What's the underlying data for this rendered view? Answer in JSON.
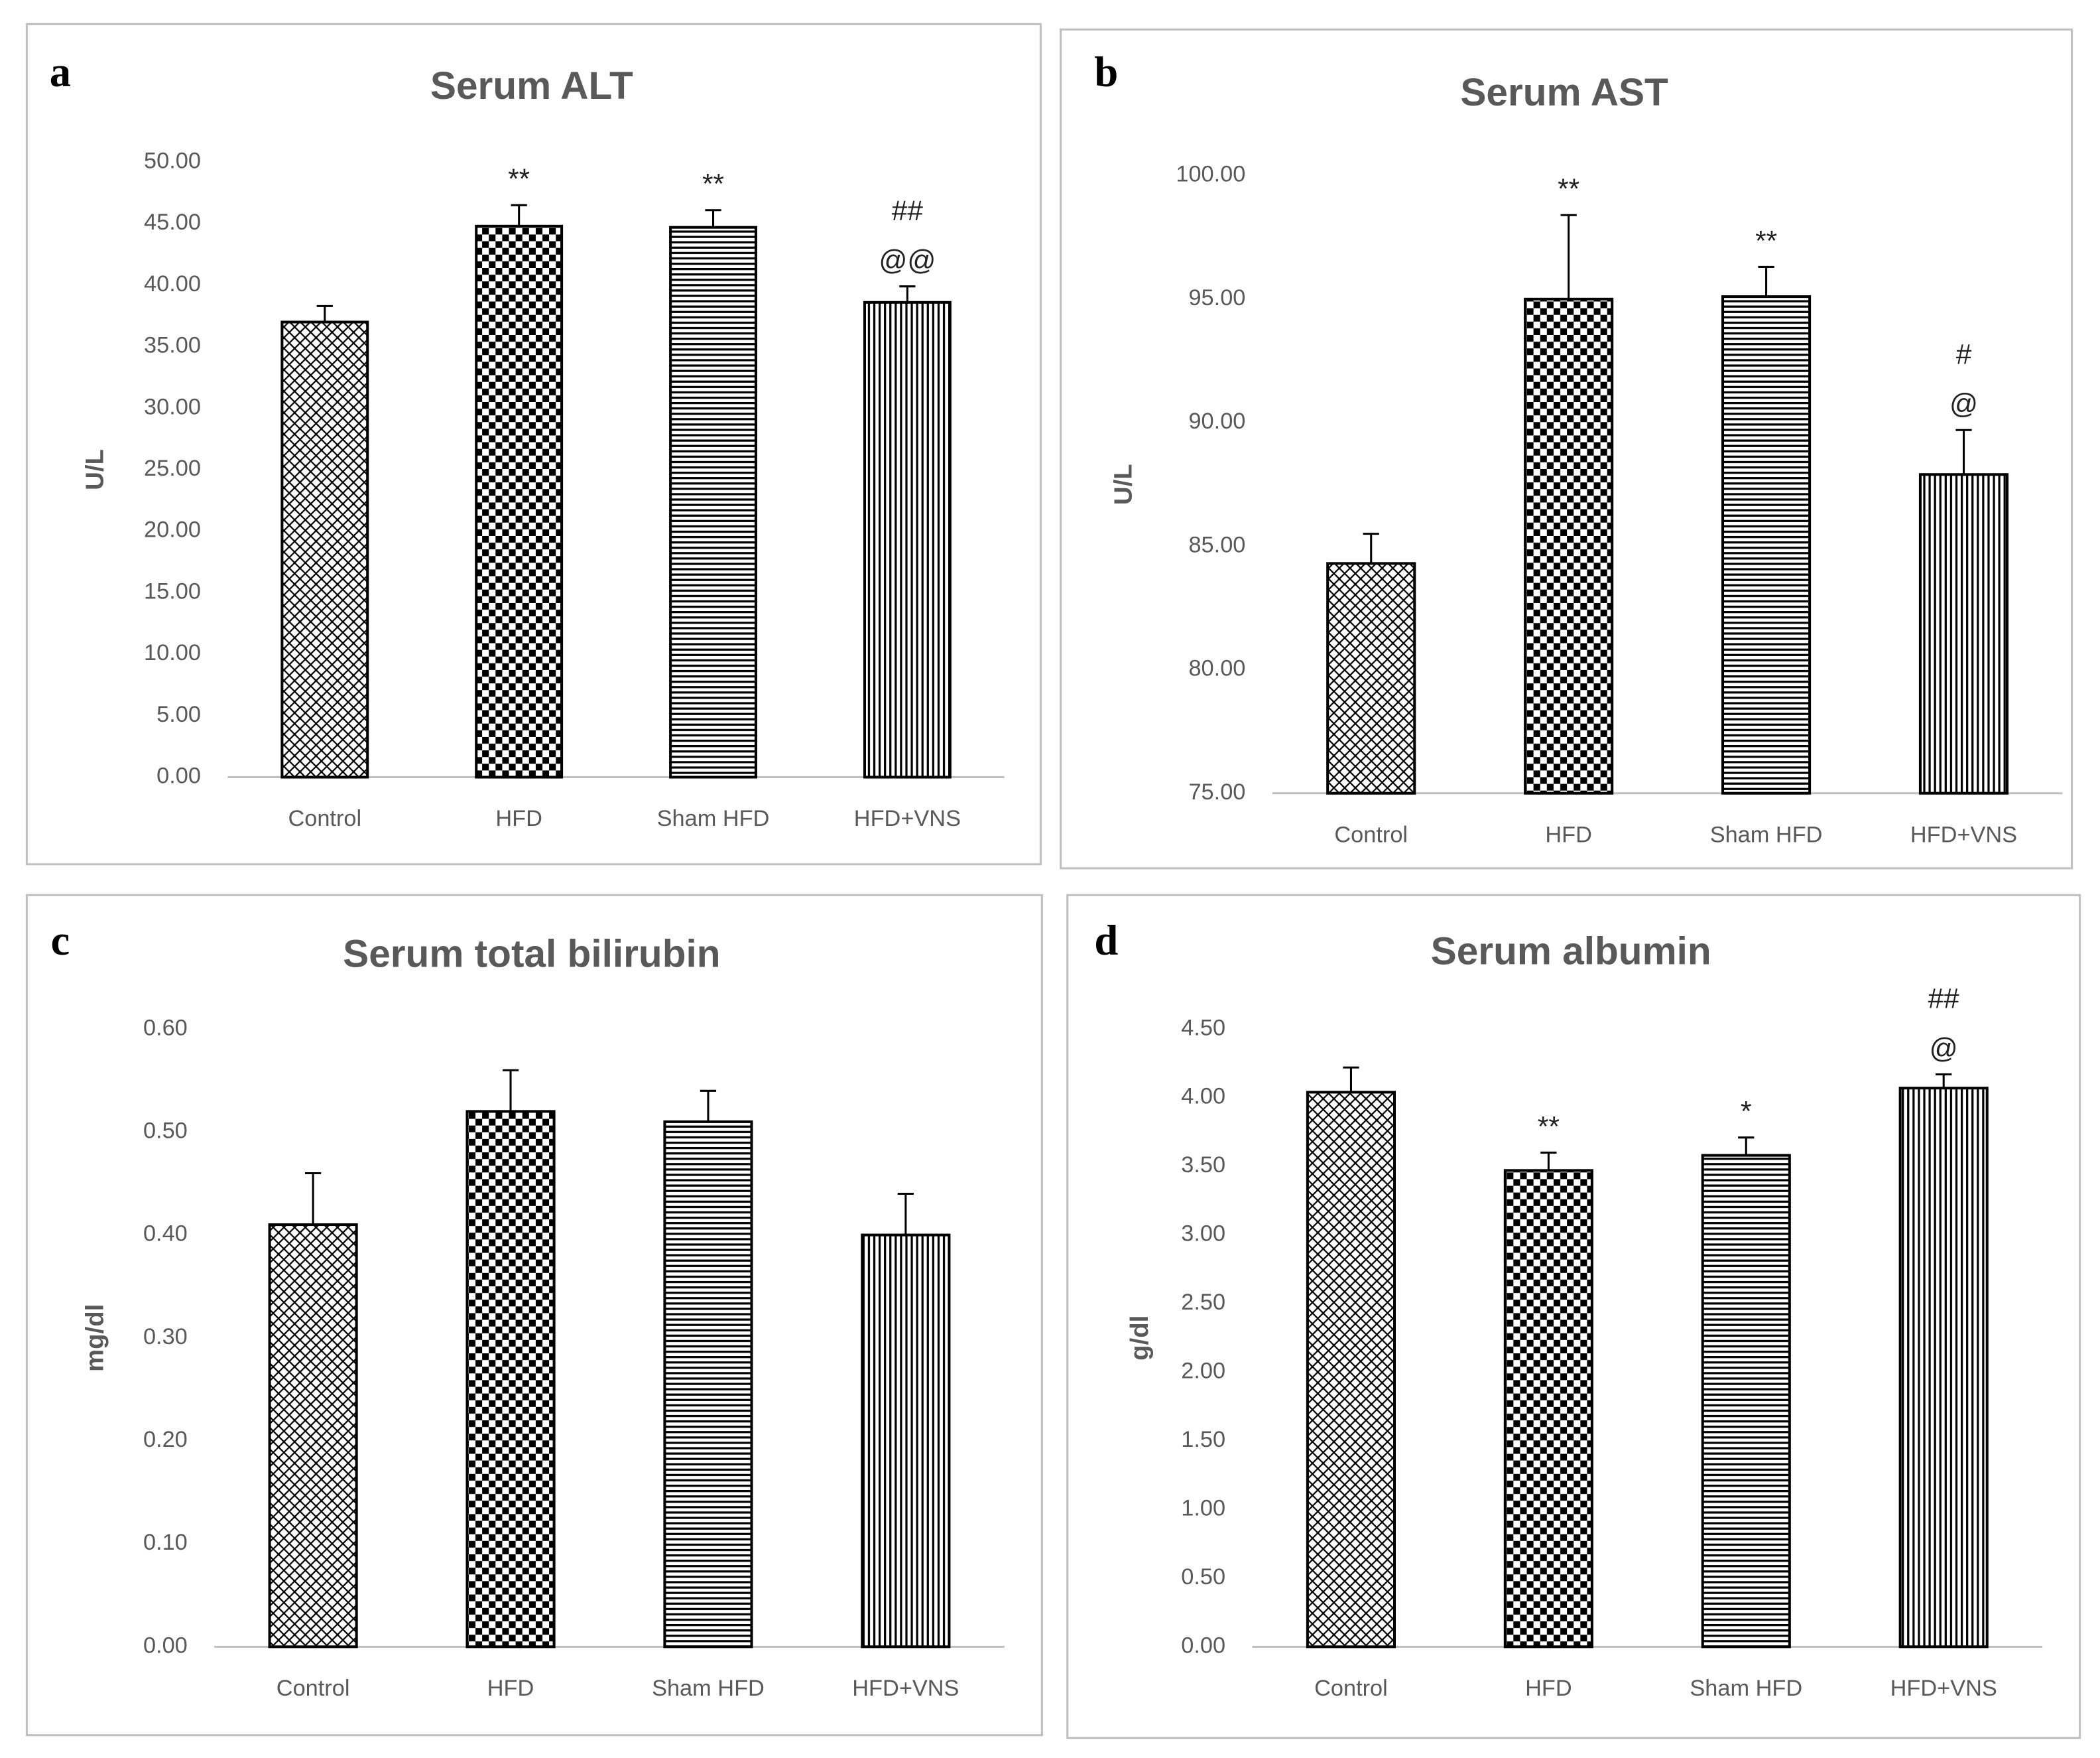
{
  "chart_data": [
    {
      "type": "bar",
      "panel": "a",
      "title": "Serum ALT",
      "ylabel": "U/L",
      "categories": [
        "Control",
        "HFD",
        "Sham HFD",
        "HFD+VNS"
      ],
      "values": [
        37.0,
        44.8,
        44.7,
        38.6
      ],
      "errors": [
        1.3,
        1.7,
        1.4,
        1.3
      ],
      "annotations": [
        [],
        [
          "**"
        ],
        [
          "**"
        ],
        [
          "##",
          "@@"
        ]
      ],
      "patterns": [
        "crosshatch",
        "checker",
        "hlines",
        "vlines"
      ],
      "color": "#000000",
      "ylim": [
        0,
        50
      ],
      "yticks": [
        {
          "value": 0,
          "label": "0.00"
        },
        {
          "value": 5,
          "label": "5.00"
        },
        {
          "value": 10,
          "label": "10.00"
        },
        {
          "value": 15,
          "label": "15.00"
        },
        {
          "value": 20,
          "label": "20.00"
        },
        {
          "value": 25,
          "label": "25.00"
        },
        {
          "value": 30,
          "label": "30.00"
        },
        {
          "value": 35,
          "label": "35.00"
        },
        {
          "value": 40,
          "label": "40.00"
        },
        {
          "value": 45,
          "label": "45.00"
        },
        {
          "value": 50,
          "label": "50.00"
        }
      ]
    },
    {
      "type": "bar",
      "panel": "b",
      "title": "Serum AST",
      "ylabel": "U/L",
      "categories": [
        "Control",
        "HFD",
        "Sham HFD",
        "HFD+VNS"
      ],
      "values": [
        84.3,
        95.0,
        95.1,
        87.9
      ],
      "errors": [
        1.2,
        3.4,
        1.2,
        1.8
      ],
      "annotations": [
        [],
        [
          "**"
        ],
        [
          "**"
        ],
        [
          "#",
          "@"
        ]
      ],
      "patterns": [
        "crosshatch",
        "checker",
        "hlines",
        "vlines"
      ],
      "color": "#000000",
      "ylim": [
        75,
        100
      ],
      "yticks": [
        {
          "value": 75,
          "label": "75.00"
        },
        {
          "value": 80,
          "label": "80.00"
        },
        {
          "value": 85,
          "label": "85.00"
        },
        {
          "value": 90,
          "label": "90.00"
        },
        {
          "value": 95,
          "label": "95.00"
        },
        {
          "value": 100,
          "label": "100.00"
        }
      ]
    },
    {
      "type": "bar",
      "panel": "c",
      "title": "Serum total bilirubin",
      "ylabel": "mg/dl",
      "categories": [
        "Control",
        "HFD",
        "Sham HFD",
        "HFD+VNS"
      ],
      "values": [
        0.41,
        0.52,
        0.51,
        0.4
      ],
      "errors": [
        0.05,
        0.04,
        0.03,
        0.04
      ],
      "annotations": [
        [],
        [],
        [],
        []
      ],
      "patterns": [
        "crosshatch",
        "checker",
        "hlines",
        "vlines"
      ],
      "color": "#000000",
      "ylim": [
        0,
        0.6
      ],
      "yticks": [
        {
          "value": 0,
          "label": "0.00"
        },
        {
          "value": 0.1,
          "label": "0.10"
        },
        {
          "value": 0.2,
          "label": "0.20"
        },
        {
          "value": 0.3,
          "label": "0.30"
        },
        {
          "value": 0.4,
          "label": "0.40"
        },
        {
          "value": 0.5,
          "label": "0.50"
        },
        {
          "value": 0.6,
          "label": "0.60"
        }
      ]
    },
    {
      "type": "bar",
      "panel": "d",
      "title": "Serum albumin",
      "ylabel": "g/dl",
      "categories": [
        "Control",
        "HFD",
        "Sham HFD",
        "HFD+VNS"
      ],
      "values": [
        4.04,
        3.47,
        3.58,
        4.07
      ],
      "errors": [
        0.18,
        0.13,
        0.13,
        0.1
      ],
      "annotations": [
        [],
        [
          "**"
        ],
        [
          "*"
        ],
        [
          "##",
          "@"
        ]
      ],
      "patterns": [
        "crosshatch",
        "checker",
        "hlines",
        "vlines"
      ],
      "color": "#000000",
      "ylim": [
        0,
        4.5
      ],
      "yticks": [
        {
          "value": 0,
          "label": "0.00"
        },
        {
          "value": 0.5,
          "label": "0.50"
        },
        {
          "value": 1,
          "label": "1.00"
        },
        {
          "value": 1.5,
          "label": "1.50"
        },
        {
          "value": 2,
          "label": "2.00"
        },
        {
          "value": 2.5,
          "label": "2.50"
        },
        {
          "value": 3,
          "label": "3.00"
        },
        {
          "value": 3.5,
          "label": "3.50"
        },
        {
          "value": 4,
          "label": "4.00"
        },
        {
          "value": 4.5,
          "label": "4.50"
        }
      ]
    }
  ]
}
